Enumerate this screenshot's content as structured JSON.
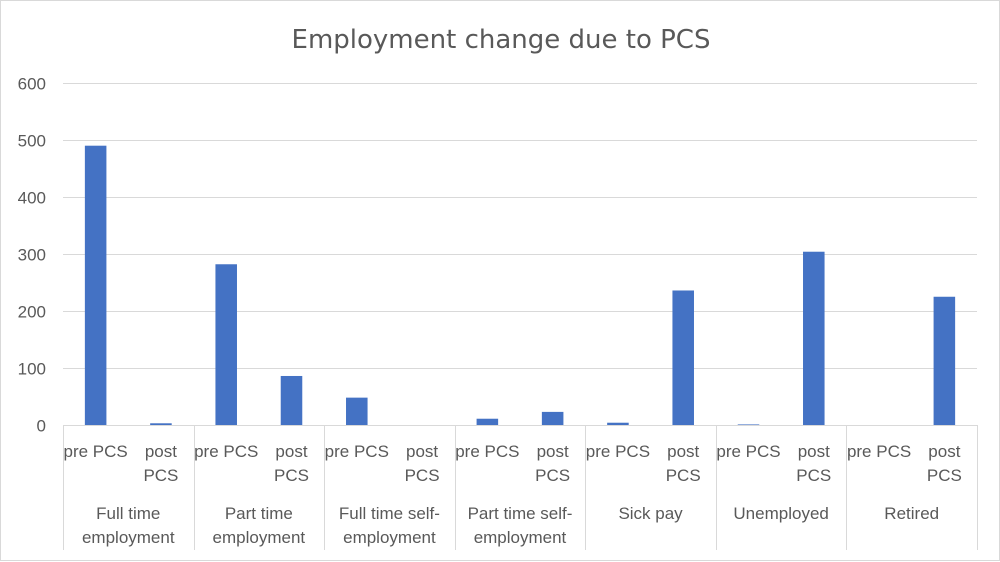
{
  "chart_data": {
    "type": "bar",
    "title": "Employment change due to PCS",
    "xlabel": "",
    "ylabel": "",
    "ylim": [
      0,
      600
    ],
    "yticks": [
      0,
      100,
      200,
      300,
      400,
      500,
      600
    ],
    "grid": true,
    "legend": "none",
    "bar_color": "#4472c4",
    "groups": [
      {
        "label": [
          "Full time",
          "employment"
        ],
        "items": [
          {
            "label": [
              "pre PCS"
            ],
            "value": 490
          },
          {
            "label": [
              "post",
              "PCS"
            ],
            "value": 3
          }
        ]
      },
      {
        "label": [
          "Part time",
          "employment"
        ],
        "items": [
          {
            "label": [
              "pre PCS"
            ],
            "value": 282
          },
          {
            "label": [
              "post",
              "PCS"
            ],
            "value": 86
          }
        ]
      },
      {
        "label": [
          "Full time self-",
          "employment"
        ],
        "items": [
          {
            "label": [
              "pre PCS"
            ],
            "value": 48
          },
          {
            "label": [
              "post",
              "PCS"
            ],
            "value": 0
          }
        ]
      },
      {
        "label": [
          "Part time self-",
          "employment"
        ],
        "items": [
          {
            "label": [
              "pre PCS"
            ],
            "value": 11
          },
          {
            "label": [
              "post",
              "PCS"
            ],
            "value": 23
          }
        ]
      },
      {
        "label": [
          "Sick pay"
        ],
        "items": [
          {
            "label": [
              "pre PCS"
            ],
            "value": 4
          },
          {
            "label": [
              "post",
              "PCS"
            ],
            "value": 236
          }
        ]
      },
      {
        "label": [
          "Unemployed"
        ],
        "items": [
          {
            "label": [
              "pre PCS"
            ],
            "value": 1
          },
          {
            "label": [
              "post",
              "PCS"
            ],
            "value": 304
          }
        ]
      },
      {
        "label": [
          "Retired"
        ],
        "items": [
          {
            "label": [
              "pre PCS"
            ],
            "value": 0
          },
          {
            "label": [
              "post",
              "PCS"
            ],
            "value": 225
          }
        ]
      }
    ]
  }
}
